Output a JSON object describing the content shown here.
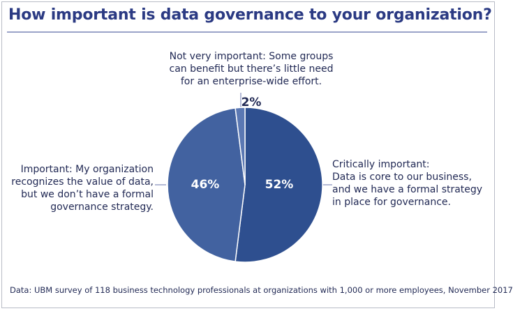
{
  "chart_data": {
    "type": "pie",
    "title": "How important is data governance to your organization?",
    "source": "Data: UBM survey of 118 business technology professionals at organizations with 1,000 or more employees, November 2017",
    "slices": [
      {
        "name": "Critically important",
        "value": 52,
        "label": "52%",
        "annotation": "Critically important:\nData is core to our business,\nand we have a formal strategy\nin place for governance.",
        "color": "#2e4f8f"
      },
      {
        "name": "Important",
        "value": 46,
        "label": "46%",
        "annotation": "Important: My organization\nrecognizes the value of data,\nbut we don’t have a formal\ngovernance strategy.",
        "color": "#4262a0"
      },
      {
        "name": "Not very important",
        "value": 2,
        "label": "2%",
        "annotation": "Not very important: Some groups\ncan benefit but there’s little need\nfor an enterprise-wide effort.",
        "color": "#5b78b3"
      }
    ],
    "colors": {
      "title": "#2b3a83",
      "text": "#222a55",
      "leader_line": "#9aa3c8",
      "slice_label": "#ffffff",
      "small_slice_label": "#222a55"
    },
    "start_direction": "12 o'clock",
    "direction": "clockwise",
    "legend": "none"
  }
}
